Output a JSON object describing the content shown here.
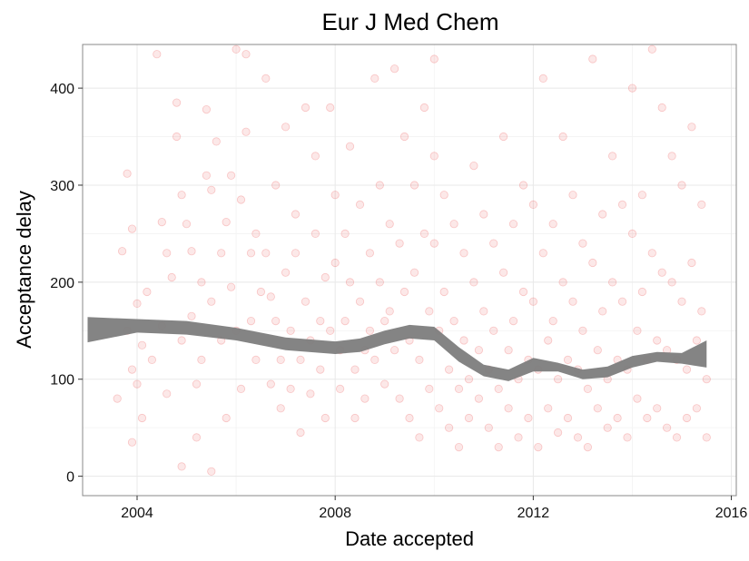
{
  "chart_data": {
    "type": "scatter",
    "title": "Eur J Med Chem",
    "xlabel": "Date accepted",
    "ylabel": "Acceptance delay",
    "xlim": [
      2002.9,
      2016.1
    ],
    "ylim": [
      -20,
      445
    ],
    "x_ticks": [
      2004,
      2008,
      2012,
      2016
    ],
    "x_tick_labels": [
      "2004",
      "2008",
      "2012",
      "2016"
    ],
    "y_ticks": [
      0,
      100,
      200,
      300,
      400
    ],
    "y_tick_labels": [
      "0",
      "100",
      "200",
      "300",
      "400"
    ],
    "grid": true,
    "point_color": "#e31a1c",
    "band_color": "#7f7f7f",
    "smooth_band": {
      "x": [
        2003.0,
        2004.0,
        2005.0,
        2006.0,
        2007.0,
        2008.0,
        2008.5,
        2009.0,
        2009.5,
        2010.0,
        2010.5,
        2011.0,
        2011.5,
        2012.0,
        2012.5,
        2013.0,
        2013.5,
        2014.0,
        2014.5,
        2015.0,
        2015.5
      ],
      "lower": [
        138,
        148,
        146,
        140,
        130,
        126,
        128,
        136,
        142,
        140,
        118,
        103,
        98,
        108,
        108,
        100,
        102,
        112,
        118,
        116,
        112
      ],
      "upper": [
        164,
        162,
        160,
        153,
        143,
        139,
        142,
        150,
        156,
        154,
        133,
        115,
        110,
        122,
        117,
        110,
        113,
        124,
        128,
        127,
        140
      ]
    },
    "points": [
      [
        2003.6,
        80
      ],
      [
        2003.7,
        232
      ],
      [
        2003.8,
        312
      ],
      [
        2003.9,
        255
      ],
      [
        2003.8,
        150
      ],
      [
        2003.9,
        110
      ],
      [
        2004.0,
        178
      ],
      [
        2004.0,
        95
      ],
      [
        2003.9,
        35
      ],
      [
        2004.1,
        135
      ],
      [
        2004.2,
        190
      ],
      [
        2004.1,
        60
      ],
      [
        2004.3,
        120
      ],
      [
        2004.4,
        435
      ],
      [
        2004.5,
        262
      ],
      [
        2004.6,
        230
      ],
      [
        2004.5,
        155
      ],
      [
        2004.6,
        85
      ],
      [
        2004.7,
        205
      ],
      [
        2004.8,
        385
      ],
      [
        2004.8,
        350
      ],
      [
        2004.9,
        290
      ],
      [
        2004.9,
        140
      ],
      [
        2004.9,
        10
      ],
      [
        2005.0,
        260
      ],
      [
        2005.1,
        232
      ],
      [
        2005.1,
        165
      ],
      [
        2005.2,
        95
      ],
      [
        2005.2,
        40
      ],
      [
        2005.3,
        200
      ],
      [
        2005.3,
        120
      ],
      [
        2005.4,
        310
      ],
      [
        2005.4,
        378
      ],
      [
        2005.5,
        295
      ],
      [
        2005.5,
        180
      ],
      [
        2005.5,
        5
      ],
      [
        2005.6,
        345
      ],
      [
        2005.7,
        230
      ],
      [
        2005.7,
        140
      ],
      [
        2005.8,
        262
      ],
      [
        2005.8,
        60
      ],
      [
        2005.9,
        310
      ],
      [
        2005.9,
        195
      ],
      [
        2006.0,
        440
      ],
      [
        2006.0,
        150
      ],
      [
        2006.1,
        285
      ],
      [
        2006.1,
        90
      ],
      [
        2006.2,
        435
      ],
      [
        2006.2,
        355
      ],
      [
        2006.3,
        230
      ],
      [
        2006.3,
        160
      ],
      [
        2006.4,
        250
      ],
      [
        2006.4,
        120
      ],
      [
        2006.5,
        190
      ],
      [
        2006.6,
        410
      ],
      [
        2006.6,
        230
      ],
      [
        2006.7,
        185
      ],
      [
        2006.7,
        95
      ],
      [
        2006.8,
        300
      ],
      [
        2006.8,
        160
      ],
      [
        2006.9,
        120
      ],
      [
        2006.9,
        70
      ],
      [
        2007.0,
        360
      ],
      [
        2007.0,
        210
      ],
      [
        2007.1,
        150
      ],
      [
        2007.1,
        90
      ],
      [
        2007.2,
        270
      ],
      [
        2007.2,
        230
      ],
      [
        2007.3,
        120
      ],
      [
        2007.3,
        45
      ],
      [
        2007.4,
        380
      ],
      [
        2007.4,
        180
      ],
      [
        2007.5,
        140
      ],
      [
        2007.5,
        85
      ],
      [
        2007.6,
        330
      ],
      [
        2007.6,
        250
      ],
      [
        2007.7,
        160
      ],
      [
        2007.7,
        110
      ],
      [
        2007.8,
        205
      ],
      [
        2007.8,
        60
      ],
      [
        2007.9,
        380
      ],
      [
        2007.9,
        150
      ],
      [
        2008.0,
        290
      ],
      [
        2008.0,
        220
      ],
      [
        2008.1,
        130
      ],
      [
        2008.1,
        90
      ],
      [
        2008.2,
        250
      ],
      [
        2008.2,
        160
      ],
      [
        2008.3,
        340
      ],
      [
        2008.3,
        200
      ],
      [
        2008.4,
        110
      ],
      [
        2008.4,
        60
      ],
      [
        2008.5,
        280
      ],
      [
        2008.5,
        180
      ],
      [
        2008.6,
        130
      ],
      [
        2008.6,
        80
      ],
      [
        2008.7,
        230
      ],
      [
        2008.7,
        150
      ],
      [
        2008.8,
        410
      ],
      [
        2008.8,
        120
      ],
      [
        2008.9,
        300
      ],
      [
        2008.9,
        200
      ],
      [
        2009.0,
        160
      ],
      [
        2009.0,
        95
      ],
      [
        2009.1,
        260
      ],
      [
        2009.1,
        170
      ],
      [
        2009.2,
        420
      ],
      [
        2009.2,
        130
      ],
      [
        2009.3,
        240
      ],
      [
        2009.3,
        80
      ],
      [
        2009.4,
        350
      ],
      [
        2009.4,
        190
      ],
      [
        2009.5,
        140
      ],
      [
        2009.5,
        60
      ],
      [
        2009.6,
        300
      ],
      [
        2009.6,
        210
      ],
      [
        2009.7,
        120
      ],
      [
        2009.7,
        40
      ],
      [
        2009.8,
        380
      ],
      [
        2009.8,
        250
      ],
      [
        2009.9,
        170
      ],
      [
        2009.9,
        90
      ],
      [
        2010.0,
        430
      ],
      [
        2010.0,
        330
      ],
      [
        2010.0,
        240
      ],
      [
        2010.1,
        150
      ],
      [
        2010.1,
        70
      ],
      [
        2010.2,
        290
      ],
      [
        2010.2,
        190
      ],
      [
        2010.3,
        110
      ],
      [
        2010.3,
        50
      ],
      [
        2010.4,
        260
      ],
      [
        2010.4,
        160
      ],
      [
        2010.5,
        90
      ],
      [
        2010.5,
        30
      ],
      [
        2010.6,
        230
      ],
      [
        2010.6,
        140
      ],
      [
        2010.7,
        100
      ],
      [
        2010.7,
        60
      ],
      [
        2010.8,
        320
      ],
      [
        2010.8,
        200
      ],
      [
        2010.9,
        130
      ],
      [
        2010.9,
        80
      ],
      [
        2011.0,
        270
      ],
      [
        2011.0,
        170
      ],
      [
        2011.1,
        110
      ],
      [
        2011.1,
        50
      ],
      [
        2011.2,
        240
      ],
      [
        2011.2,
        150
      ],
      [
        2011.3,
        90
      ],
      [
        2011.3,
        30
      ],
      [
        2011.4,
        350
      ],
      [
        2011.4,
        210
      ],
      [
        2011.5,
        130
      ],
      [
        2011.5,
        70
      ],
      [
        2011.6,
        260
      ],
      [
        2011.6,
        160
      ],
      [
        2011.7,
        100
      ],
      [
        2011.7,
        40
      ],
      [
        2011.8,
        300
      ],
      [
        2011.8,
        190
      ],
      [
        2011.9,
        120
      ],
      [
        2011.9,
        60
      ],
      [
        2012.0,
        280
      ],
      [
        2012.0,
        180
      ],
      [
        2012.1,
        110
      ],
      [
        2012.1,
        30
      ],
      [
        2012.2,
        410
      ],
      [
        2012.2,
        230
      ],
      [
        2012.3,
        140
      ],
      [
        2012.3,
        70
      ],
      [
        2012.4,
        260
      ],
      [
        2012.4,
        160
      ],
      [
        2012.5,
        100
      ],
      [
        2012.5,
        45
      ],
      [
        2012.6,
        350
      ],
      [
        2012.6,
        200
      ],
      [
        2012.7,
        120
      ],
      [
        2012.7,
        60
      ],
      [
        2012.8,
        290
      ],
      [
        2012.8,
        180
      ],
      [
        2012.9,
        110
      ],
      [
        2012.9,
        40
      ],
      [
        2013.0,
        240
      ],
      [
        2013.0,
        150
      ],
      [
        2013.1,
        90
      ],
      [
        2013.1,
        30
      ],
      [
        2013.2,
        430
      ],
      [
        2013.2,
        220
      ],
      [
        2013.3,
        130
      ],
      [
        2013.3,
        70
      ],
      [
        2013.4,
        270
      ],
      [
        2013.4,
        170
      ],
      [
        2013.5,
        100
      ],
      [
        2013.5,
        50
      ],
      [
        2013.6,
        330
      ],
      [
        2013.6,
        200
      ],
      [
        2013.7,
        120
      ],
      [
        2013.7,
        60
      ],
      [
        2013.8,
        280
      ],
      [
        2013.8,
        180
      ],
      [
        2013.9,
        110
      ],
      [
        2013.9,
        40
      ],
      [
        2014.0,
        400
      ],
      [
        2014.0,
        250
      ],
      [
        2014.1,
        150
      ],
      [
        2014.1,
        80
      ],
      [
        2014.2,
        290
      ],
      [
        2014.2,
        190
      ],
      [
        2014.3,
        120
      ],
      [
        2014.3,
        60
      ],
      [
        2014.4,
        440
      ],
      [
        2014.4,
        230
      ],
      [
        2014.5,
        140
      ],
      [
        2014.5,
        70
      ],
      [
        2014.6,
        380
      ],
      [
        2014.6,
        210
      ],
      [
        2014.7,
        130
      ],
      [
        2014.7,
        50
      ],
      [
        2014.8,
        330
      ],
      [
        2014.8,
        200
      ],
      [
        2014.9,
        120
      ],
      [
        2014.9,
        40
      ],
      [
        2015.0,
        300
      ],
      [
        2015.0,
        180
      ],
      [
        2015.1,
        110
      ],
      [
        2015.1,
        60
      ],
      [
        2015.2,
        360
      ],
      [
        2015.2,
        220
      ],
      [
        2015.3,
        140
      ],
      [
        2015.3,
        70
      ],
      [
        2015.4,
        280
      ],
      [
        2015.4,
        170
      ],
      [
        2015.5,
        100
      ],
      [
        2015.5,
        40
      ]
    ]
  }
}
